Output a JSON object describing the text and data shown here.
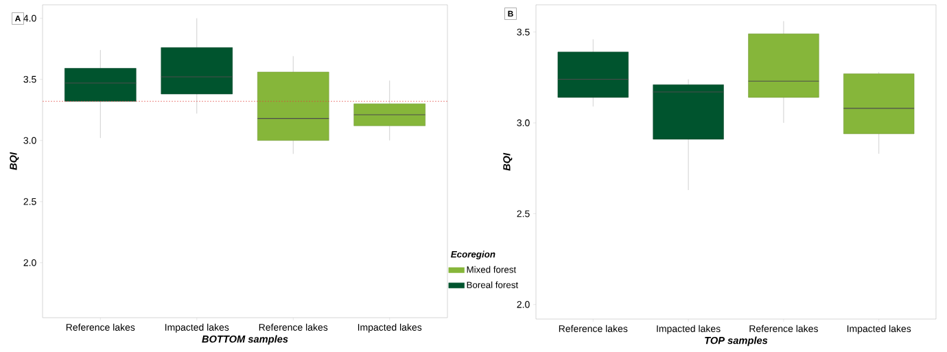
{
  "chart_data": [
    {
      "type": "box",
      "annotations": [
        "A"
      ],
      "xlabel": "BOTTOM samples",
      "ylabel": "BQI",
      "categories": [
        "Reference lakes",
        "Impacted lakes",
        "Reference lakes",
        "Impacted lakes"
      ],
      "ylim": [
        1.55,
        4.11
      ],
      "yticks": [
        {
          "value": 2,
          "label": "2.0"
        },
        {
          "value": 2.5,
          "label": "2.5"
        },
        {
          "value": 3,
          "label": "3.0"
        },
        {
          "value": 3.5,
          "label": "3.5"
        },
        {
          "value": 4,
          "label": "4.0"
        }
      ],
      "legend": "right",
      "legend_title": "Ecoregion",
      "ref_lines": [
        {
          "axis": "y",
          "value": 3.32,
          "color": "#e0403a",
          "line_style": "dotted"
        }
      ],
      "series": [
        {
          "name": "Mixed forest",
          "color": "#86b63a",
          "boxes": [
            null,
            null,
            {
              "low": 2.89,
              "q1": 3.0,
              "median": 3.18,
              "q3": 3.56,
              "high": 3.69
            },
            {
              "low": 3.0,
              "q1": 3.12,
              "median": 3.21,
              "q3": 3.3,
              "high": 3.49
            }
          ]
        },
        {
          "name": "Boreal forest",
          "color": "#00542e",
          "boxes": [
            {
              "low": 3.02,
              "q1": 3.32,
              "median": 3.47,
              "q3": 3.59,
              "high": 3.74
            },
            {
              "low": 3.22,
              "q1": 3.38,
              "median": 3.52,
              "q3": 3.76,
              "high": 4.0
            },
            null,
            null
          ]
        }
      ]
    },
    {
      "type": "box",
      "annotations": [
        "B"
      ],
      "xlabel": "TOP samples",
      "ylabel": "BQI",
      "categories": [
        "Reference lakes",
        "Impacted lakes",
        "Reference lakes",
        "Impacted lakes"
      ],
      "ylim": [
        1.92,
        3.65
      ],
      "yticks": [
        {
          "value": 2,
          "label": "2.0"
        },
        {
          "value": 2.5,
          "label": "2.5"
        },
        {
          "value": 3,
          "label": "3.0"
        },
        {
          "value": 3.5,
          "label": "3.5"
        }
      ],
      "series": [
        {
          "color": "#86b63a",
          "boxes": [
            null,
            null,
            {
              "low": 3.0,
              "q1": 3.14,
              "median": 3.23,
              "q3": 3.49,
              "high": 3.56
            },
            {
              "low": 2.83,
              "q1": 2.94,
              "median": 3.08,
              "q3": 3.27,
              "high": 3.28
            }
          ]
        },
        {
          "color": "#00542e",
          "boxes": [
            {
              "low": 3.09,
              "q1": 3.14,
              "median": 3.24,
              "q3": 3.39,
              "high": 3.46
            },
            {
              "low": 2.63,
              "q1": 2.91,
              "median": 3.17,
              "q3": 3.21,
              "high": 3.24
            },
            null,
            null
          ]
        }
      ]
    }
  ]
}
